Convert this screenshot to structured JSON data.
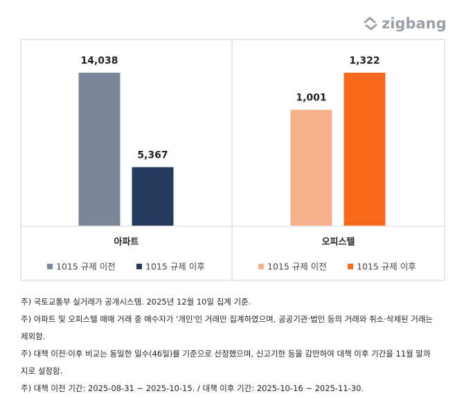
{
  "logo": "zigbang",
  "chart_data": [
    {
      "type": "bar",
      "categories": [
        "아파트"
      ],
      "series": [
        {
          "name": "1015 규제 이전",
          "color": "#7b8798",
          "values": [
            14038
          ],
          "value_labels": [
            "14,038"
          ]
        },
        {
          "name": "1015 규제 이후",
          "color": "#243a5e",
          "values": [
            5367
          ],
          "value_labels": [
            "5,367"
          ]
        }
      ]
    },
    {
      "type": "bar",
      "categories": [
        "오피스텔"
      ],
      "series": [
        {
          "name": "1015 규제 이전",
          "color": "#f9b08c",
          "values": [
            1001
          ],
          "value_labels": [
            "1,001"
          ]
        },
        {
          "name": "1015 규제 이후",
          "color": "#fb6a1c",
          "values": [
            1322
          ],
          "value_labels": [
            "1,322"
          ]
        }
      ]
    }
  ],
  "notes": [
    "주) 국토교통부 실거래가 공개시스템. 2025년 12월 10일 집계 기준.",
    "주) 아파트 및 오피스텔 매매 거래 중 매수자가 '개인'인 거래만 집계하였으며, 공공기관·법인 등의 거래와 취소·삭제된 거래는 제외함.",
    "주) 대책 이전·이후 비교는 동일한 일수(46일)를 기준으로 산정했으며, 신고기한 등을 감안하여 대책 이후 기간을 11월 말까지로 설정함.",
    "주) 대책 이전 기간: 2025-08-31 ~ 2025-10-15. / 대책 이후 기간: 2025-10-16 ~ 2025-11-30."
  ]
}
